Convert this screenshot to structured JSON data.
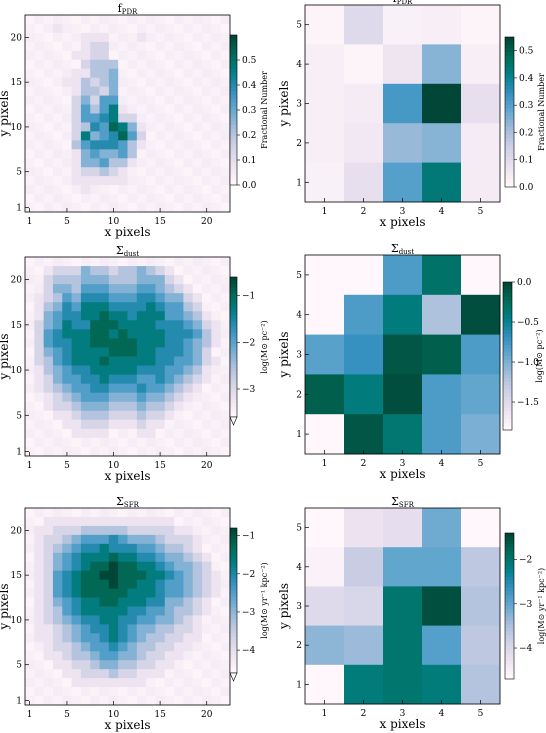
{
  "chart_data": [
    {
      "type": "heatmap",
      "title": "f",
      "title_sub": "PDR",
      "xlabel": "x pixels",
      "ylabel": "y pixels",
      "xticks": [
        "1",
        "5",
        "10",
        "15",
        "20"
      ],
      "yticks": [
        "1",
        "5",
        "10",
        "15",
        "20"
      ],
      "colorbar": {
        "label": "Fractional Number",
        "ticks": [
          "0.0",
          "0.1",
          "0.2",
          "0.3",
          "0.4",
          "0.5"
        ],
        "range": [
          0,
          0.6
        ],
        "colormap": "PuBuGn"
      },
      "nx": 22,
      "ny": 22,
      "grid": [
        "0000000000000000000000",
        "0001000000000000000000",
        "0000001110001000000000",
        "0000001220000000000000",
        "0000011220000000000000",
        "0000002333000000000000",
        "0000011334000000000000",
        "0000113234000000000000",
        "0000013324000000000000",
        "0000024255000000000000",
        "0000025357100000000000",
        "0000025567220000000000",
        "0000023658741000000000",
        "0000027456852000000000",
        "0000035666531000000000",
        "0000014544530000000000",
        "0000014453310000000000",
        "0000012232100000000000",
        "0000011111100000000000",
        "0000001000000000000000",
        "0000000000000000000000",
        "0000000000000000000000"
      ]
    },
    {
      "type": "heatmap",
      "title": "f",
      "title_sub": "PDR",
      "xlabel": "x pixels",
      "ylabel": "y pixels",
      "xticks": [
        "1",
        "2",
        "3",
        "4",
        "5"
      ],
      "yticks": [
        "1",
        "2",
        "3",
        "4",
        "5"
      ],
      "colorbar": {
        "label": "Fractional Number",
        "ticks": [
          "0.0",
          "0.1",
          "0.2",
          "0.3",
          "0.4",
          "0.5"
        ],
        "range": [
          0,
          0.55
        ],
        "colormap": "PuBuGn"
      },
      "values": [
        [
          0.01,
          0.1,
          0.02,
          0.03,
          0.01
        ],
        [
          0.03,
          0.01,
          0.06,
          0.24,
          0.03
        ],
        [
          0.03,
          0.04,
          0.32,
          0.55,
          0.08
        ],
        [
          0.03,
          0.05,
          0.22,
          0.24,
          0.04
        ],
        [
          0.02,
          0.08,
          0.3,
          0.44,
          0.04
        ]
      ]
    },
    {
      "type": "heatmap",
      "title": "Σ",
      "title_sub": "dust",
      "xlabel": "x pixels",
      "ylabel": "y pixels",
      "xticks": [
        "1",
        "5",
        "10",
        "15",
        "20"
      ],
      "yticks": [
        "1",
        "5",
        "10",
        "15",
        "20"
      ],
      "colorbar": {
        "label": "log(M⊙ pc⁻²)",
        "ticks": [
          "−3",
          "−2",
          "−1"
        ],
        "range": [
          -3.6,
          -0.6
        ],
        "colormap": "PuBuGn"
      },
      "nx": 22,
      "ny": 22,
      "grid": [
        "0000000000000000000000",
        "0012224332334321000000",
        "0023334443334442100000",
        "0024435554445543210000",
        "0123546665556654421000",
        "0134657776666765532000",
        "0145667787767775543100",
        "0245766888777766654210",
        "0256777887877776665310",
        "0256677888887776654310",
        "0245677778887766654200",
        "0235677787777766554210",
        "0134566777776665543100",
        "0124556676665565432100",
        "0123455665556554321000",
        "0012345554445443210000",
        "0012234443334332100000",
        "0001123332223221000000",
        "0000112221112110000000",
        "0000011110001100000000",
        "0000000000000000000000",
        "0000000000000000000000"
      ]
    },
    {
      "type": "heatmap",
      "title": "Σ",
      "title_sub": "dust",
      "xlabel": "x pixels",
      "ylabel": "y pixels",
      "xticks": [
        "1",
        "2",
        "3",
        "4",
        "5"
      ],
      "yticks": [
        "1",
        "2",
        "3",
        "4",
        "5"
      ],
      "colorbar": {
        "label": "log(M⊙ pc⁻²)",
        "ticks": [
          "−1.5",
          "−1.0",
          "−0.5",
          "0.0"
        ],
        "range": [
          -1.85,
          0.0
        ],
        "colormap": "PuBuGn"
      },
      "values": [
        [
          -1.9,
          -1.9,
          -0.8,
          -0.3,
          -1.9
        ],
        [
          -1.85,
          -0.8,
          -0.4,
          -1.2,
          -0.05
        ],
        [
          -0.85,
          -0.7,
          -0.1,
          -0.15,
          -0.8
        ],
        [
          -0.15,
          -0.4,
          -0.05,
          -0.8,
          -0.9
        ],
        [
          -1.9,
          -0.1,
          -0.35,
          -0.8,
          -1.0
        ]
      ]
    },
    {
      "type": "heatmap",
      "title": "Σ",
      "title_sub": "SFR",
      "xlabel": "x pixels",
      "ylabel": "y pixels",
      "xticks": [
        "1",
        "5",
        "10",
        "15",
        "20"
      ],
      "yticks": [
        "1",
        "5",
        "10",
        "15",
        "20"
      ],
      "colorbar": {
        "label": "log(M⊙ yr⁻¹ kpc⁻²)",
        "ticks": [
          "−4",
          "−3",
          "−2",
          "−1"
        ],
        "range": [
          -4.6,
          -0.8
        ],
        "colormap": "PuBuGn"
      },
      "nx": 22,
      "ny": 22,
      "grid": [
        "0000000000000000000000",
        "0011111111111111000000",
        "0112223333322222110000",
        "0122345556544432221000",
        "0123456676665543321000",
        "0124567778776654432100",
        "0124567889887765443200",
        "0125678899888776543210",
        "0125678889887765543210",
        "0125678888877765543210",
        "0124567788777664432100",
        "0123567777766554332100",
        "0123456677665544321000",
        "0112345667654433221000",
        "0112345567654332211000",
        "0012234556543322110000",
        "0011233455443221100000",
        "0001122344332211000000",
        "0000112223221110000000",
        "0000011111111000000000",
        "0000000000000000000000",
        "0000000000000000000000"
      ]
    },
    {
      "type": "heatmap",
      "title": "Σ",
      "title_sub": "SFR",
      "xlabel": "x pixels",
      "ylabel": "y pixels",
      "xticks": [
        "1",
        "2",
        "3",
        "4",
        "5"
      ],
      "yticks": [
        "1",
        "2",
        "3",
        "4",
        "5"
      ],
      "colorbar": {
        "label": "log(M⊙ yr⁻¹ kpc⁻²)",
        "ticks": [
          "−4",
          "−3",
          "−2"
        ],
        "range": [
          -4.7,
          -1.4
        ],
        "colormap": "PuBuGn"
      },
      "values": [
        [
          -4.9,
          -4.3,
          -4.2,
          -3.1,
          -4.9
        ],
        [
          -4.6,
          -3.8,
          -3.0,
          -3.0,
          -3.7
        ],
        [
          -4.1,
          -4.0,
          -2.0,
          -1.5,
          -3.6
        ],
        [
          -3.3,
          -3.4,
          -2.0,
          -2.9,
          -3.7
        ],
        [
          -4.9,
          -2.1,
          -2.0,
          -2.1,
          -3.6
        ]
      ]
    }
  ]
}
